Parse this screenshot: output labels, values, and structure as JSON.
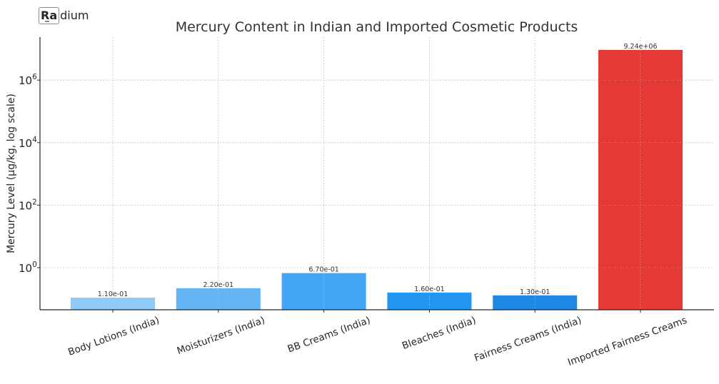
{
  "logo": {
    "box_text": "Ra",
    "rest_text": "dium"
  },
  "chart_data": {
    "type": "bar",
    "title": "Mercury Content in Indian and Imported Cosmetic Products",
    "xlabel": "",
    "ylabel": "Mercury Level (µg/kg, log scale)",
    "yscale": "log",
    "ylim": [
      0.02,
      20000000
    ],
    "yticks": [
      {
        "exp": "0",
        "value": 1
      },
      {
        "exp": "2",
        "value": 100
      },
      {
        "exp": "4",
        "value": 10000
      },
      {
        "exp": "6",
        "value": 1000000
      }
    ],
    "grid": true,
    "categories": [
      "Body Lotions (India)",
      "Moisturizers (India)",
      "BB Creams (India)",
      "Bleaches (India)",
      "Fairness Creams (India)",
      "Imported Fairness Creams"
    ],
    "values": [
      0.11,
      0.22,
      0.67,
      0.16,
      0.13,
      9240000
    ],
    "value_labels": [
      "1.10e-01",
      "2.20e-01",
      "6.70e-01",
      "1.60e-01",
      "1.30e-01",
      "9.24e+06"
    ],
    "colors": [
      "#90caf9",
      "#64b5f6",
      "#42a5f5",
      "#2196f3",
      "#1e88e5",
      "#e53935"
    ],
    "tick_label_rotation": 20
  }
}
